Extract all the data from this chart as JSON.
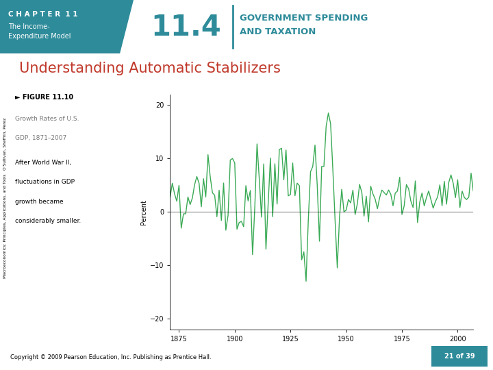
{
  "slide_bg": "#ffffff",
  "header_bg": "#2e8b9a",
  "header_text": "C H A P T E R  1 1",
  "header_subtext1": "The Income-",
  "header_subtext2": "Expenditure Model",
  "section_number": "11.4",
  "section_title_line1": "GOVERNMENT SPENDING",
  "section_title_line2": "AND TAXATION",
  "section_title_color": "#2e8b9a",
  "slide_title": "Understanding Automatic Stabilizers",
  "slide_title_color": "#c0392b",
  "figure_label": "► FIGURE 11.10",
  "figure_desc_gray1": "Growth Rates of U.S.",
  "figure_desc_gray2": "GDP, 1871–2007",
  "figure_desc3": "After World War II,",
  "figure_desc4": "fluctuations in GDP",
  "figure_desc5": "growth became",
  "figure_desc6": "considerably smaller.",
  "ylabel": "Percent",
  "yticks": [
    -20,
    -10,
    0,
    10,
    20
  ],
  "xticks": [
    1875,
    1900,
    1925,
    1950,
    1975,
    2000
  ],
  "xmin": 1871,
  "xmax": 2007,
  "ymin": -22,
  "ymax": 22,
  "line_color": "#3aaa55",
  "line_width": 1.0,
  "sidebar_text": "Macroeconomics: Principles, Applications, and Tools   O’Sullivan, Sheffrin, Perez",
  "footer_text": "Copyright © 2009 Pearson Education, Inc. Publishing as Prentice Hall.",
  "footer_page": "21 of 39",
  "footer_page_bg": "#2e8b9a"
}
